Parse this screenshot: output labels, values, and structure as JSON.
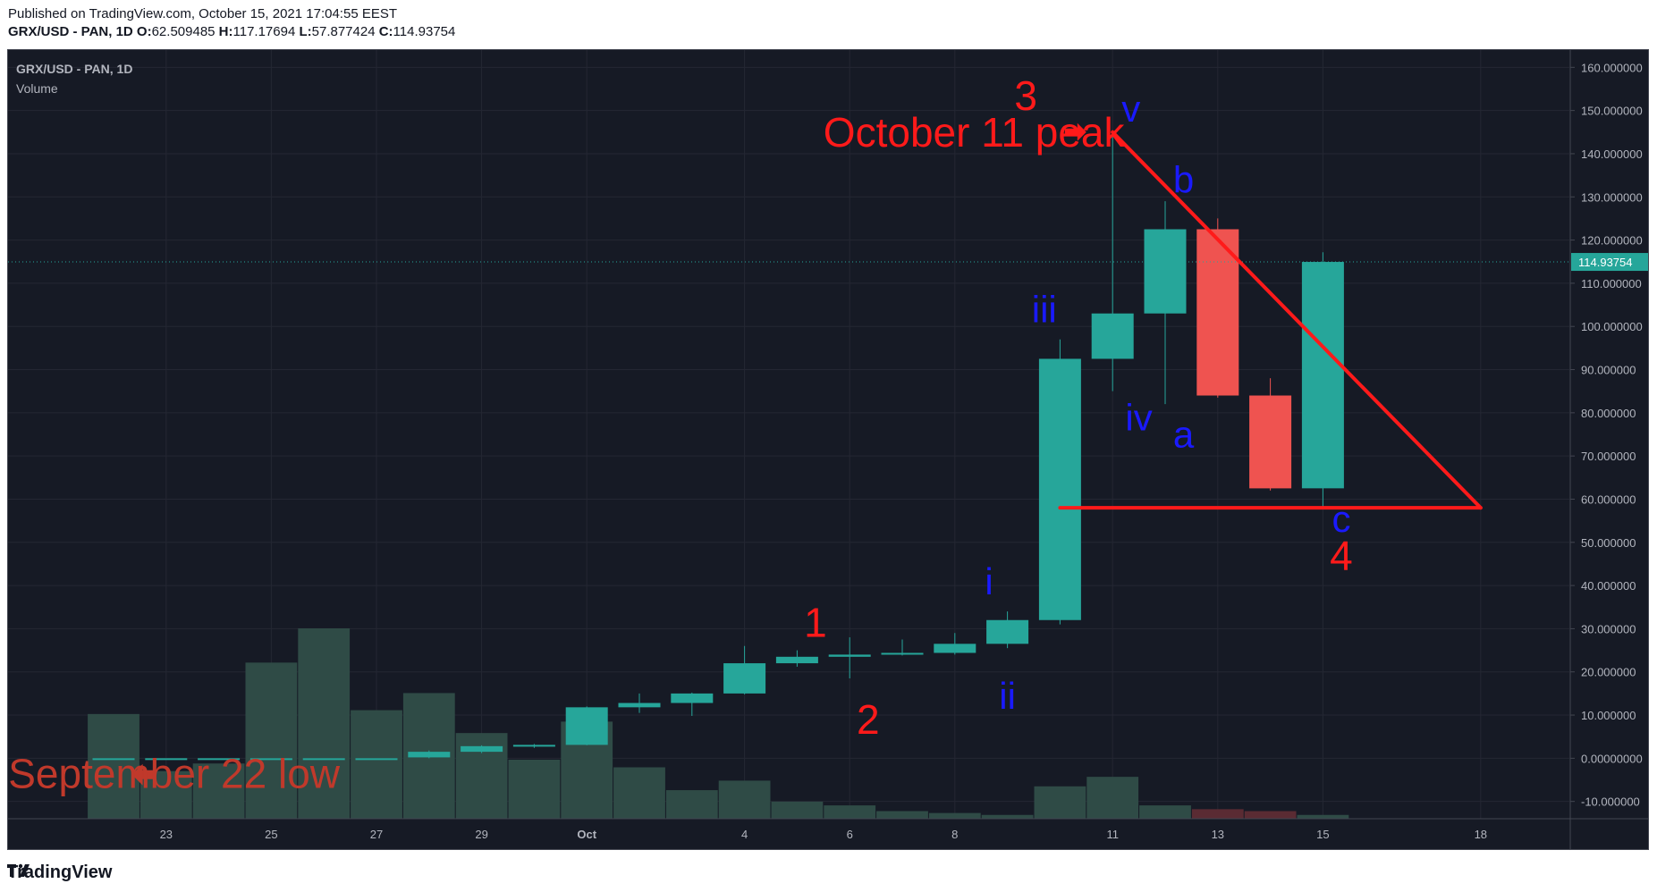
{
  "header": {
    "published": "Published on TradingView.com, October 15, 2021 17:04:55 EEST",
    "symbol_line": "GRX/USD - PAN, 1D",
    "o_label": "O:",
    "o_value": "62.509485",
    "h_label": "H:",
    "h_value": "117.17694",
    "l_label": "L:",
    "l_value": "57.877424",
    "c_label": "C:",
    "c_value": "114.93754"
  },
  "legend": {
    "symbol": "GRX/USD - PAN, 1D",
    "volume": "Volume"
  },
  "footer": {
    "brand": "TradingView"
  },
  "colors": {
    "background": "#161a25",
    "up": "#26a69a",
    "down": "#ef5350",
    "volume_up": "#2f4b46",
    "volume_down": "#5a2b33",
    "annotation_red": "#ff1a1a",
    "annotation_blue": "#1a1aff",
    "axis_text": "#b2b5be",
    "grid": "#242733"
  },
  "chart_data": {
    "type": "candlestick",
    "symbol": "GRX/USD - PAN, 1D",
    "y_axis": {
      "range": [
        -14,
        164
      ],
      "ticks": [
        "160.000000",
        "150.000000",
        "140.000000",
        "130.000000",
        "120.000000",
        "110.000000",
        "100.000000",
        "90.000000",
        "80.000000",
        "70.000000",
        "60.000000",
        "50.000000",
        "40.000000",
        "30.000000",
        "20.000000",
        "10.000000",
        "0.00000000",
        "-10.000000"
      ],
      "tick_values": [
        160,
        150,
        140,
        130,
        120,
        110,
        100,
        90,
        80,
        70,
        60,
        50,
        40,
        30,
        20,
        10,
        0,
        -10
      ]
    },
    "x_axis": {
      "dates": [
        "Sep 22",
        "Sep 23",
        "Sep 24",
        "Sep 25",
        "Sep 26",
        "Sep 27",
        "Sep 28",
        "Sep 29",
        "Sep 30",
        "Oct 1",
        "Oct 2",
        "Oct 3",
        "Oct 4",
        "Oct 5",
        "Oct 6",
        "Oct 7",
        "Oct 8",
        "Oct 9",
        "Oct 10",
        "Oct 11",
        "Oct 12",
        "Oct 13",
        "Oct 14",
        "Oct 15",
        "Oct 16",
        "Oct 17",
        "Oct 18"
      ],
      "tick_labels": [
        {
          "date": "Sep 23",
          "label": "23"
        },
        {
          "date": "Sep 25",
          "label": "25"
        },
        {
          "date": "Sep 27",
          "label": "27"
        },
        {
          "date": "Sep 29",
          "label": "29"
        },
        {
          "date": "Oct 1",
          "label": "Oct"
        },
        {
          "date": "Oct 4",
          "label": "4"
        },
        {
          "date": "Oct 6",
          "label": "6"
        },
        {
          "date": "Oct 8",
          "label": "8"
        },
        {
          "date": "Oct 11",
          "label": "11"
        },
        {
          "date": "Oct 13",
          "label": "13"
        },
        {
          "date": "Oct 15",
          "label": "15"
        },
        {
          "date": "Oct 18",
          "label": "18"
        }
      ]
    },
    "candles": [
      {
        "date": "Sep 22",
        "o": 0.0,
        "h": 0.0,
        "l": 0.0,
        "c": 0.0
      },
      {
        "date": "Sep 23",
        "o": 0.0,
        "h": 0.0,
        "l": 0.0,
        "c": 0.0
      },
      {
        "date": "Sep 24",
        "o": 0.0,
        "h": 0.0,
        "l": 0.0,
        "c": 0.0
      },
      {
        "date": "Sep 25",
        "o": 0.0,
        "h": 0.0,
        "l": 0.0,
        "c": 0.0
      },
      {
        "date": "Sep 26",
        "o": 0.0,
        "h": 0.0,
        "l": 0.0,
        "c": 0.0
      },
      {
        "date": "Sep 27",
        "o": 0.0,
        "h": 0.0,
        "l": 0.0,
        "c": 0.0
      },
      {
        "date": "Sep 28",
        "o": 0.2,
        "h": 1.8,
        "l": 0.0,
        "c": 1.5
      },
      {
        "date": "Sep 29",
        "o": 1.5,
        "h": 3.0,
        "l": 1.2,
        "c": 2.8
      },
      {
        "date": "Sep 30",
        "o": 2.8,
        "h": 3.3,
        "l": 2.4,
        "c": 3.1
      },
      {
        "date": "Oct 1",
        "o": 3.1,
        "h": 12.0,
        "l": 3.0,
        "c": 11.8
      },
      {
        "date": "Oct 2",
        "o": 11.8,
        "h": 15.0,
        "l": 10.5,
        "c": 12.8
      },
      {
        "date": "Oct 3",
        "o": 12.8,
        "h": 15.2,
        "l": 9.8,
        "c": 15.0
      },
      {
        "date": "Oct 4",
        "o": 15.0,
        "h": 26.0,
        "l": 14.8,
        "c": 22.0
      },
      {
        "date": "Oct 5",
        "o": 22.0,
        "h": 25.0,
        "l": 21.2,
        "c": 23.5
      },
      {
        "date": "Oct 6",
        "o": 23.5,
        "h": 28.0,
        "l": 18.5,
        "c": 24.0
      },
      {
        "date": "Oct 7",
        "o": 24.0,
        "h": 27.5,
        "l": 23.8,
        "c": 24.4
      },
      {
        "date": "Oct 8",
        "o": 24.4,
        "h": 29.0,
        "l": 24.0,
        "c": 26.5
      },
      {
        "date": "Oct 9",
        "o": 26.5,
        "h": 34.0,
        "l": 25.5,
        "c": 32.0
      },
      {
        "date": "Oct 10",
        "o": 32.0,
        "h": 97.0,
        "l": 31.0,
        "c": 92.5
      },
      {
        "date": "Oct 11",
        "o": 92.5,
        "h": 145.0,
        "l": 85.0,
        "c": 103.0
      },
      {
        "date": "Oct 12",
        "o": 103.0,
        "h": 129.0,
        "l": 82.0,
        "c": 122.5
      },
      {
        "date": "Oct 13",
        "o": 122.5,
        "h": 125.0,
        "l": 83.5,
        "c": 84.0
      },
      {
        "date": "Oct 14",
        "o": 84.0,
        "h": 88.0,
        "l": 62.0,
        "c": 62.5
      },
      {
        "date": "Oct 15",
        "o": 62.509485,
        "h": 117.17694,
        "l": 57.877424,
        "c": 114.93754
      }
    ],
    "volume": [
      {
        "date": "Sep 22",
        "v": 0.55,
        "dir": "up"
      },
      {
        "date": "Sep 23",
        "v": 0.25,
        "dir": "up"
      },
      {
        "date": "Sep 24",
        "v": 0.29,
        "dir": "up"
      },
      {
        "date": "Sep 25",
        "v": 0.82,
        "dir": "up"
      },
      {
        "date": "Sep 26",
        "v": 1.0,
        "dir": "up"
      },
      {
        "date": "Sep 27",
        "v": 0.57,
        "dir": "up"
      },
      {
        "date": "Sep 28",
        "v": 0.66,
        "dir": "up"
      },
      {
        "date": "Sep 29",
        "v": 0.45,
        "dir": "up"
      },
      {
        "date": "Sep 30",
        "v": 0.31,
        "dir": "up"
      },
      {
        "date": "Oct 1",
        "v": 0.51,
        "dir": "up"
      },
      {
        "date": "Oct 2",
        "v": 0.27,
        "dir": "up"
      },
      {
        "date": "Oct 3",
        "v": 0.15,
        "dir": "up"
      },
      {
        "date": "Oct 4",
        "v": 0.2,
        "dir": "up"
      },
      {
        "date": "Oct 5",
        "v": 0.09,
        "dir": "up"
      },
      {
        "date": "Oct 6",
        "v": 0.07,
        "dir": "up"
      },
      {
        "date": "Oct 7",
        "v": 0.04,
        "dir": "up"
      },
      {
        "date": "Oct 8",
        "v": 0.03,
        "dir": "up"
      },
      {
        "date": "Oct 9",
        "v": 0.02,
        "dir": "up"
      },
      {
        "date": "Oct 10",
        "v": 0.17,
        "dir": "up"
      },
      {
        "date": "Oct 11",
        "v": 0.22,
        "dir": "up"
      },
      {
        "date": "Oct 12",
        "v": 0.07,
        "dir": "up"
      },
      {
        "date": "Oct 13",
        "v": 0.05,
        "dir": "down"
      },
      {
        "date": "Oct 14",
        "v": 0.04,
        "dir": "down"
      },
      {
        "date": "Oct 15",
        "v": 0.02,
        "dir": "up"
      }
    ],
    "last_price_label": "114.93754",
    "annotations": {
      "text": [
        {
          "text": "3",
          "date": "Oct 10",
          "date_offset": -0.65,
          "price": 153.5,
          "color": "red",
          "size": "large"
        },
        {
          "text": "v",
          "date": "Oct 11",
          "date_offset": 0.35,
          "price": 150.5,
          "color": "blue",
          "size": "medium"
        },
        {
          "text": "October 11 peak",
          "date": "Oct 5",
          "date_offset": 0.5,
          "price": 145.0,
          "color": "red",
          "size": "large"
        },
        {
          "text": "b",
          "date": "Oct 12",
          "date_offset": 0.35,
          "price": 134.0,
          "color": "blue",
          "size": "medium"
        },
        {
          "text": "iii",
          "date": "Oct 10",
          "date_offset": -0.3,
          "price": 104.0,
          "color": "blue",
          "size": "medium"
        },
        {
          "text": "iv",
          "date": "Oct 11",
          "date_offset": 0.5,
          "price": 79.0,
          "color": "blue",
          "size": "medium"
        },
        {
          "text": "a",
          "date": "Oct 12",
          "date_offset": 0.35,
          "price": 75.0,
          "color": "blue",
          "size": "medium"
        },
        {
          "text": "c",
          "date": "Oct 15",
          "date_offset": 0.35,
          "price": 55.5,
          "color": "blue",
          "size": "medium"
        },
        {
          "text": "4",
          "date": "Oct 15",
          "date_offset": 0.35,
          "price": 47.0,
          "color": "red",
          "size": "large"
        },
        {
          "text": "i",
          "date": "Oct 9",
          "date_offset": -0.35,
          "price": 41.0,
          "color": "blue",
          "size": "medium"
        },
        {
          "text": "1",
          "date": "Oct 6",
          "date_offset": -0.65,
          "price": 31.5,
          "color": "red",
          "size": "large"
        },
        {
          "text": "ii",
          "date": "Oct 9",
          "date_offset": 0.0,
          "price": 14.5,
          "color": "blue",
          "size": "medium"
        },
        {
          "text": "2",
          "date": "Oct 6",
          "date_offset": 0.35,
          "price": 9.0,
          "color": "red",
          "size": "large"
        },
        {
          "text": "September 22 low",
          "date": "Sep 23",
          "date_offset": 0.15,
          "price": -3.5,
          "color": "red",
          "size": "large"
        }
      ],
      "lines": [
        {
          "from": {
            "date": "Oct 11",
            "price": 145.0
          },
          "to": {
            "date": "Oct 18",
            "price": 58.0
          }
        },
        {
          "from": {
            "date": "Oct 10",
            "price": 58.0
          },
          "to": {
            "date": "Oct 18",
            "price": 58.0
          }
        }
      ],
      "arrows": [
        {
          "date": "Oct 11",
          "date_offset": -0.5,
          "price": 145.0,
          "direction": "right"
        },
        {
          "date": "Sep 22",
          "date_offset": 0.35,
          "price": -3.8,
          "direction": "left"
        }
      ]
    }
  }
}
